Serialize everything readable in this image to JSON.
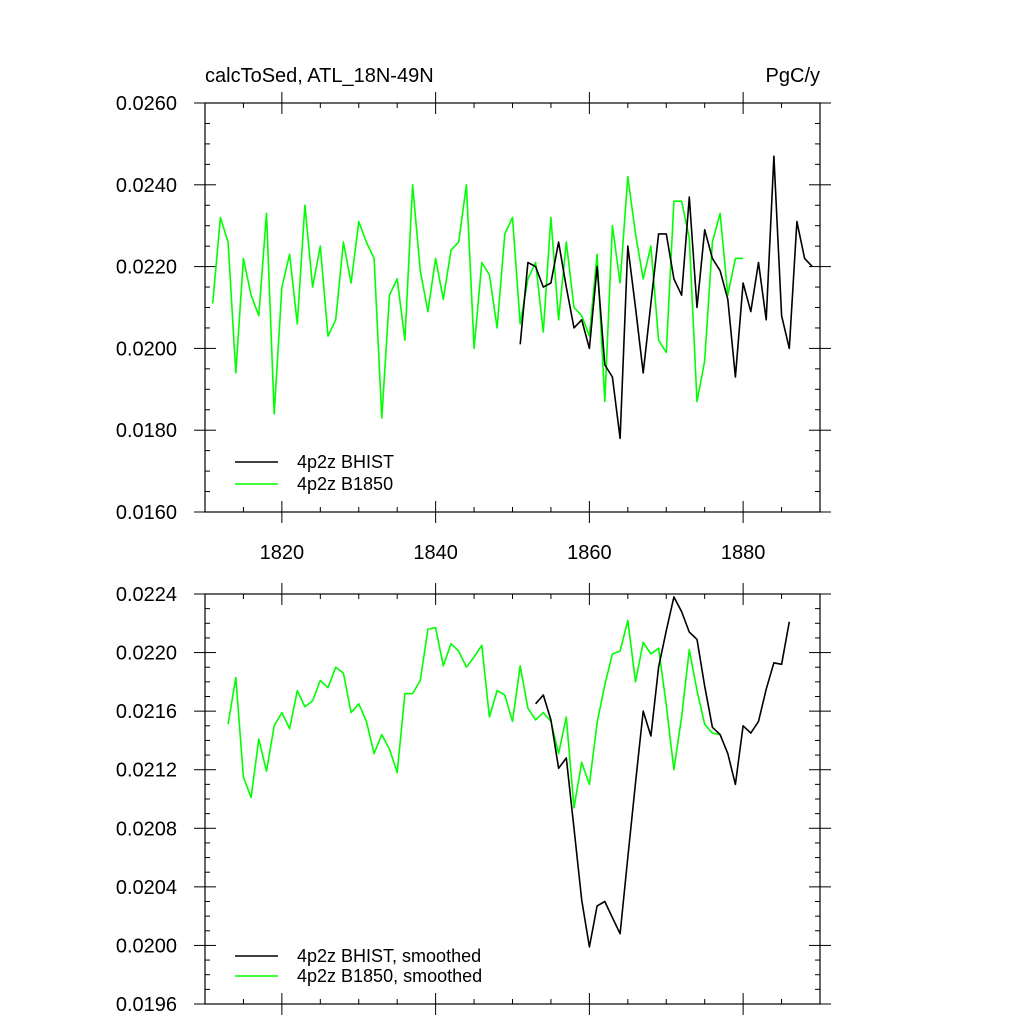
{
  "page": {
    "title_left": "calcToSed, ATL_18N-49N",
    "title_right": "PgC/y"
  },
  "colors": {
    "bhist": "#000000",
    "b1850": "#00ff00",
    "axis": "#000000"
  },
  "chart_data": [
    {
      "type": "line",
      "title": "calcToSed, ATL_18N-49N",
      "units": "PgC/y",
      "xlim": [
        1810,
        1890
      ],
      "ylim": [
        0.016,
        0.026
      ],
      "x_ticks": [
        1820,
        1840,
        1860,
        1880
      ],
      "x_tick_labels": [
        "1820",
        "1840",
        "1860",
        "1880"
      ],
      "y_ticks": [
        0.016,
        0.018,
        0.02,
        0.022,
        0.024,
        0.026
      ],
      "y_tick_labels": [
        "0.0160",
        "0.0180",
        "0.0200",
        "0.0220",
        "0.0240",
        "0.0260"
      ],
      "legend_position": "bottom-left",
      "series": [
        {
          "name": "4p2z BHIST",
          "color": "#000000",
          "x": [
            1851,
            1852,
            1853,
            1854,
            1855,
            1856,
            1857,
            1858,
            1859,
            1860,
            1861,
            1862,
            1863,
            1864,
            1865,
            1866,
            1867,
            1868,
            1869,
            1870,
            1871,
            1872,
            1873,
            1874,
            1875,
            1876,
            1877,
            1878,
            1879,
            1880,
            1881,
            1882,
            1883,
            1884,
            1885,
            1886,
            1887,
            1888,
            1889
          ],
          "values": [
            0.0201,
            0.0221,
            0.022,
            0.0215,
            0.0216,
            0.0226,
            0.0215,
            0.0205,
            0.0207,
            0.02,
            0.022,
            0.0196,
            0.0193,
            0.0178,
            0.0225,
            0.021,
            0.0194,
            0.0211,
            0.0228,
            0.0228,
            0.0217,
            0.0213,
            0.0237,
            0.021,
            0.0229,
            0.0222,
            0.0219,
            0.0212,
            0.0193,
            0.0216,
            0.0209,
            0.0221,
            0.0207,
            0.0247,
            0.0208,
            0.02,
            0.0231,
            0.0222,
            0.022
          ]
        },
        {
          "name": "4p2z B1850",
          "color": "#00ff00",
          "x": [
            1811,
            1812,
            1813,
            1814,
            1815,
            1816,
            1817,
            1818,
            1819,
            1820,
            1821,
            1822,
            1823,
            1824,
            1825,
            1826,
            1827,
            1828,
            1829,
            1830,
            1831,
            1832,
            1833,
            1834,
            1835,
            1836,
            1837,
            1838,
            1839,
            1840,
            1841,
            1842,
            1843,
            1844,
            1845,
            1846,
            1847,
            1848,
            1849,
            1850,
            1851,
            1852,
            1853,
            1854,
            1855,
            1856,
            1857,
            1858,
            1859,
            1860,
            1861,
            1862,
            1863,
            1864,
            1865,
            1866,
            1867,
            1868,
            1869,
            1870,
            1871,
            1872,
            1873,
            1874,
            1875,
            1876,
            1877,
            1878,
            1879,
            1880
          ],
          "values": [
            0.0211,
            0.0232,
            0.0226,
            0.0194,
            0.0222,
            0.0213,
            0.0208,
            0.0233,
            0.0184,
            0.0215,
            0.0223,
            0.0206,
            0.0235,
            0.0215,
            0.0225,
            0.0203,
            0.0207,
            0.0226,
            0.0216,
            0.0231,
            0.0226,
            0.0222,
            0.0183,
            0.0213,
            0.0217,
            0.0202,
            0.024,
            0.0219,
            0.0209,
            0.0222,
            0.0212,
            0.0224,
            0.0226,
            0.024,
            0.02,
            0.0221,
            0.0218,
            0.0205,
            0.0228,
            0.0232,
            0.0206,
            0.0217,
            0.0221,
            0.0204,
            0.0232,
            0.0207,
            0.0226,
            0.021,
            0.0208,
            0.0203,
            0.0223,
            0.0187,
            0.023,
            0.0216,
            0.0242,
            0.0228,
            0.0217,
            0.0225,
            0.0202,
            0.0199,
            0.0236,
            0.0236,
            0.0227,
            0.0187,
            0.0197,
            0.0226,
            0.0233,
            0.0213,
            0.0222,
            0.0222
          ]
        }
      ]
    },
    {
      "type": "line",
      "xlim": [
        1810,
        1890
      ],
      "ylim": [
        0.0196,
        0.0224
      ],
      "x_ticks": [
        1820,
        1840,
        1860,
        1880
      ],
      "y_ticks": [
        0.0196,
        0.02,
        0.0204,
        0.0208,
        0.0212,
        0.0216,
        0.022,
        0.0224
      ],
      "y_tick_labels": [
        "0.0196",
        "0.0200",
        "0.0204",
        "0.0208",
        "0.0212",
        "0.0216",
        "0.0220",
        "0.0224"
      ],
      "legend_position": "bottom-left",
      "series": [
        {
          "name": "4p2z BHIST, smoothed",
          "color": "#000000",
          "x": [
            1853,
            1854,
            1855,
            1856,
            1857,
            1858,
            1859,
            1860,
            1861,
            1862,
            1863,
            1864,
            1865,
            1866,
            1867,
            1868,
            1869,
            1870,
            1871,
            1872,
            1873,
            1874,
            1875,
            1876,
            1877,
            1878,
            1879,
            1880,
            1881,
            1882,
            1883,
            1884,
            1885,
            1886
          ],
          "values": [
            0.02165,
            0.02171,
            0.02154,
            0.02121,
            0.02128,
            0.0208,
            0.02031,
            0.01999,
            0.02027,
            0.0203,
            0.02019,
            0.02008,
            0.0206,
            0.02111,
            0.0216,
            0.02143,
            0.0219,
            0.02215,
            0.02238,
            0.02228,
            0.02214,
            0.02209,
            0.02177,
            0.02149,
            0.02144,
            0.02131,
            0.0211,
            0.0215,
            0.02145,
            0.02153,
            0.02175,
            0.02193,
            0.02192,
            0.02221
          ]
        },
        {
          "name": "4p2z B1850, smoothed",
          "color": "#00ff00",
          "x": [
            1813,
            1814,
            1815,
            1816,
            1817,
            1818,
            1819,
            1820,
            1821,
            1822,
            1823,
            1824,
            1825,
            1826,
            1827,
            1828,
            1829,
            1830,
            1831,
            1832,
            1833,
            1834,
            1835,
            1836,
            1837,
            1838,
            1839,
            1840,
            1841,
            1842,
            1843,
            1844,
            1845,
            1846,
            1847,
            1848,
            1849,
            1850,
            1851,
            1852,
            1853,
            1854,
            1855,
            1856,
            1857,
            1858,
            1859,
            1860,
            1861,
            1862,
            1863,
            1864,
            1865,
            1866,
            1867,
            1868,
            1869,
            1870,
            1871,
            1872,
            1873,
            1874,
            1875,
            1876,
            1877
          ],
          "values": [
            0.02151,
            0.02183,
            0.02115,
            0.02101,
            0.02141,
            0.02119,
            0.0215,
            0.02159,
            0.02148,
            0.02174,
            0.02163,
            0.02167,
            0.02181,
            0.02176,
            0.0219,
            0.02186,
            0.02159,
            0.02165,
            0.02153,
            0.02131,
            0.02144,
            0.02134,
            0.02118,
            0.02172,
            0.02172,
            0.02181,
            0.02216,
            0.02217,
            0.02191,
            0.02206,
            0.02201,
            0.0219,
            0.02197,
            0.02205,
            0.02156,
            0.02174,
            0.02171,
            0.02153,
            0.02191,
            0.02162,
            0.02154,
            0.02159,
            0.02153,
            0.02131,
            0.02156,
            0.02094,
            0.02125,
            0.0211,
            0.02152,
            0.02178,
            0.02199,
            0.02201,
            0.02222,
            0.0218,
            0.02207,
            0.02199,
            0.02203,
            0.02164,
            0.0212,
            0.02156,
            0.02202,
            0.02174,
            0.02151,
            0.02145,
            0.02144
          ]
        }
      ]
    }
  ]
}
